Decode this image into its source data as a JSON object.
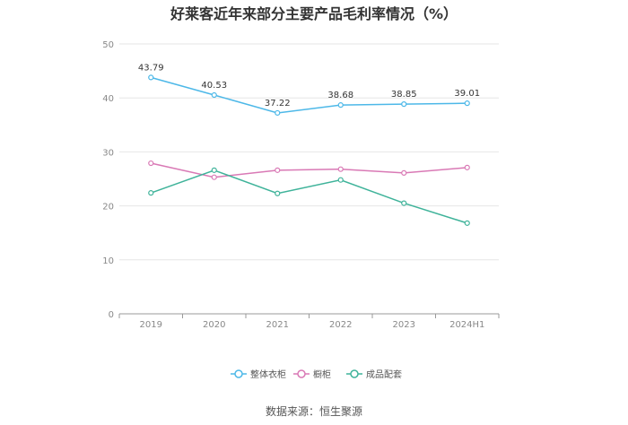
{
  "page": {
    "title": "好莱客近年来部分主要产品毛利率情况（%）",
    "source": "数据来源：恒生聚源"
  },
  "chart_data": {
    "type": "line",
    "title": "好莱客近年来部分主要产品毛利率情况（%）",
    "xlabel": "",
    "ylabel": "",
    "categories": [
      "2019",
      "2020",
      "2021",
      "2022",
      "2023",
      "2024H1"
    ],
    "ylim": [
      0,
      50
    ],
    "yticks": [
      0,
      10,
      20,
      30,
      40,
      50
    ],
    "grid": true,
    "legend_position": "bottom",
    "series": [
      {
        "name": "整体衣柜",
        "color": "#4db8e8",
        "values": [
          43.79,
          40.53,
          37.22,
          38.68,
          38.85,
          39.01
        ],
        "labeled": true
      },
      {
        "name": "橱柜",
        "color": "#d979b5",
        "values": [
          27.9,
          25.3,
          26.6,
          26.8,
          26.1,
          27.1
        ],
        "labeled": false
      },
      {
        "name": "成品配套",
        "color": "#3fb39a",
        "values": [
          22.4,
          26.6,
          22.3,
          24.8,
          20.5,
          16.8
        ],
        "labeled": false
      }
    ]
  }
}
